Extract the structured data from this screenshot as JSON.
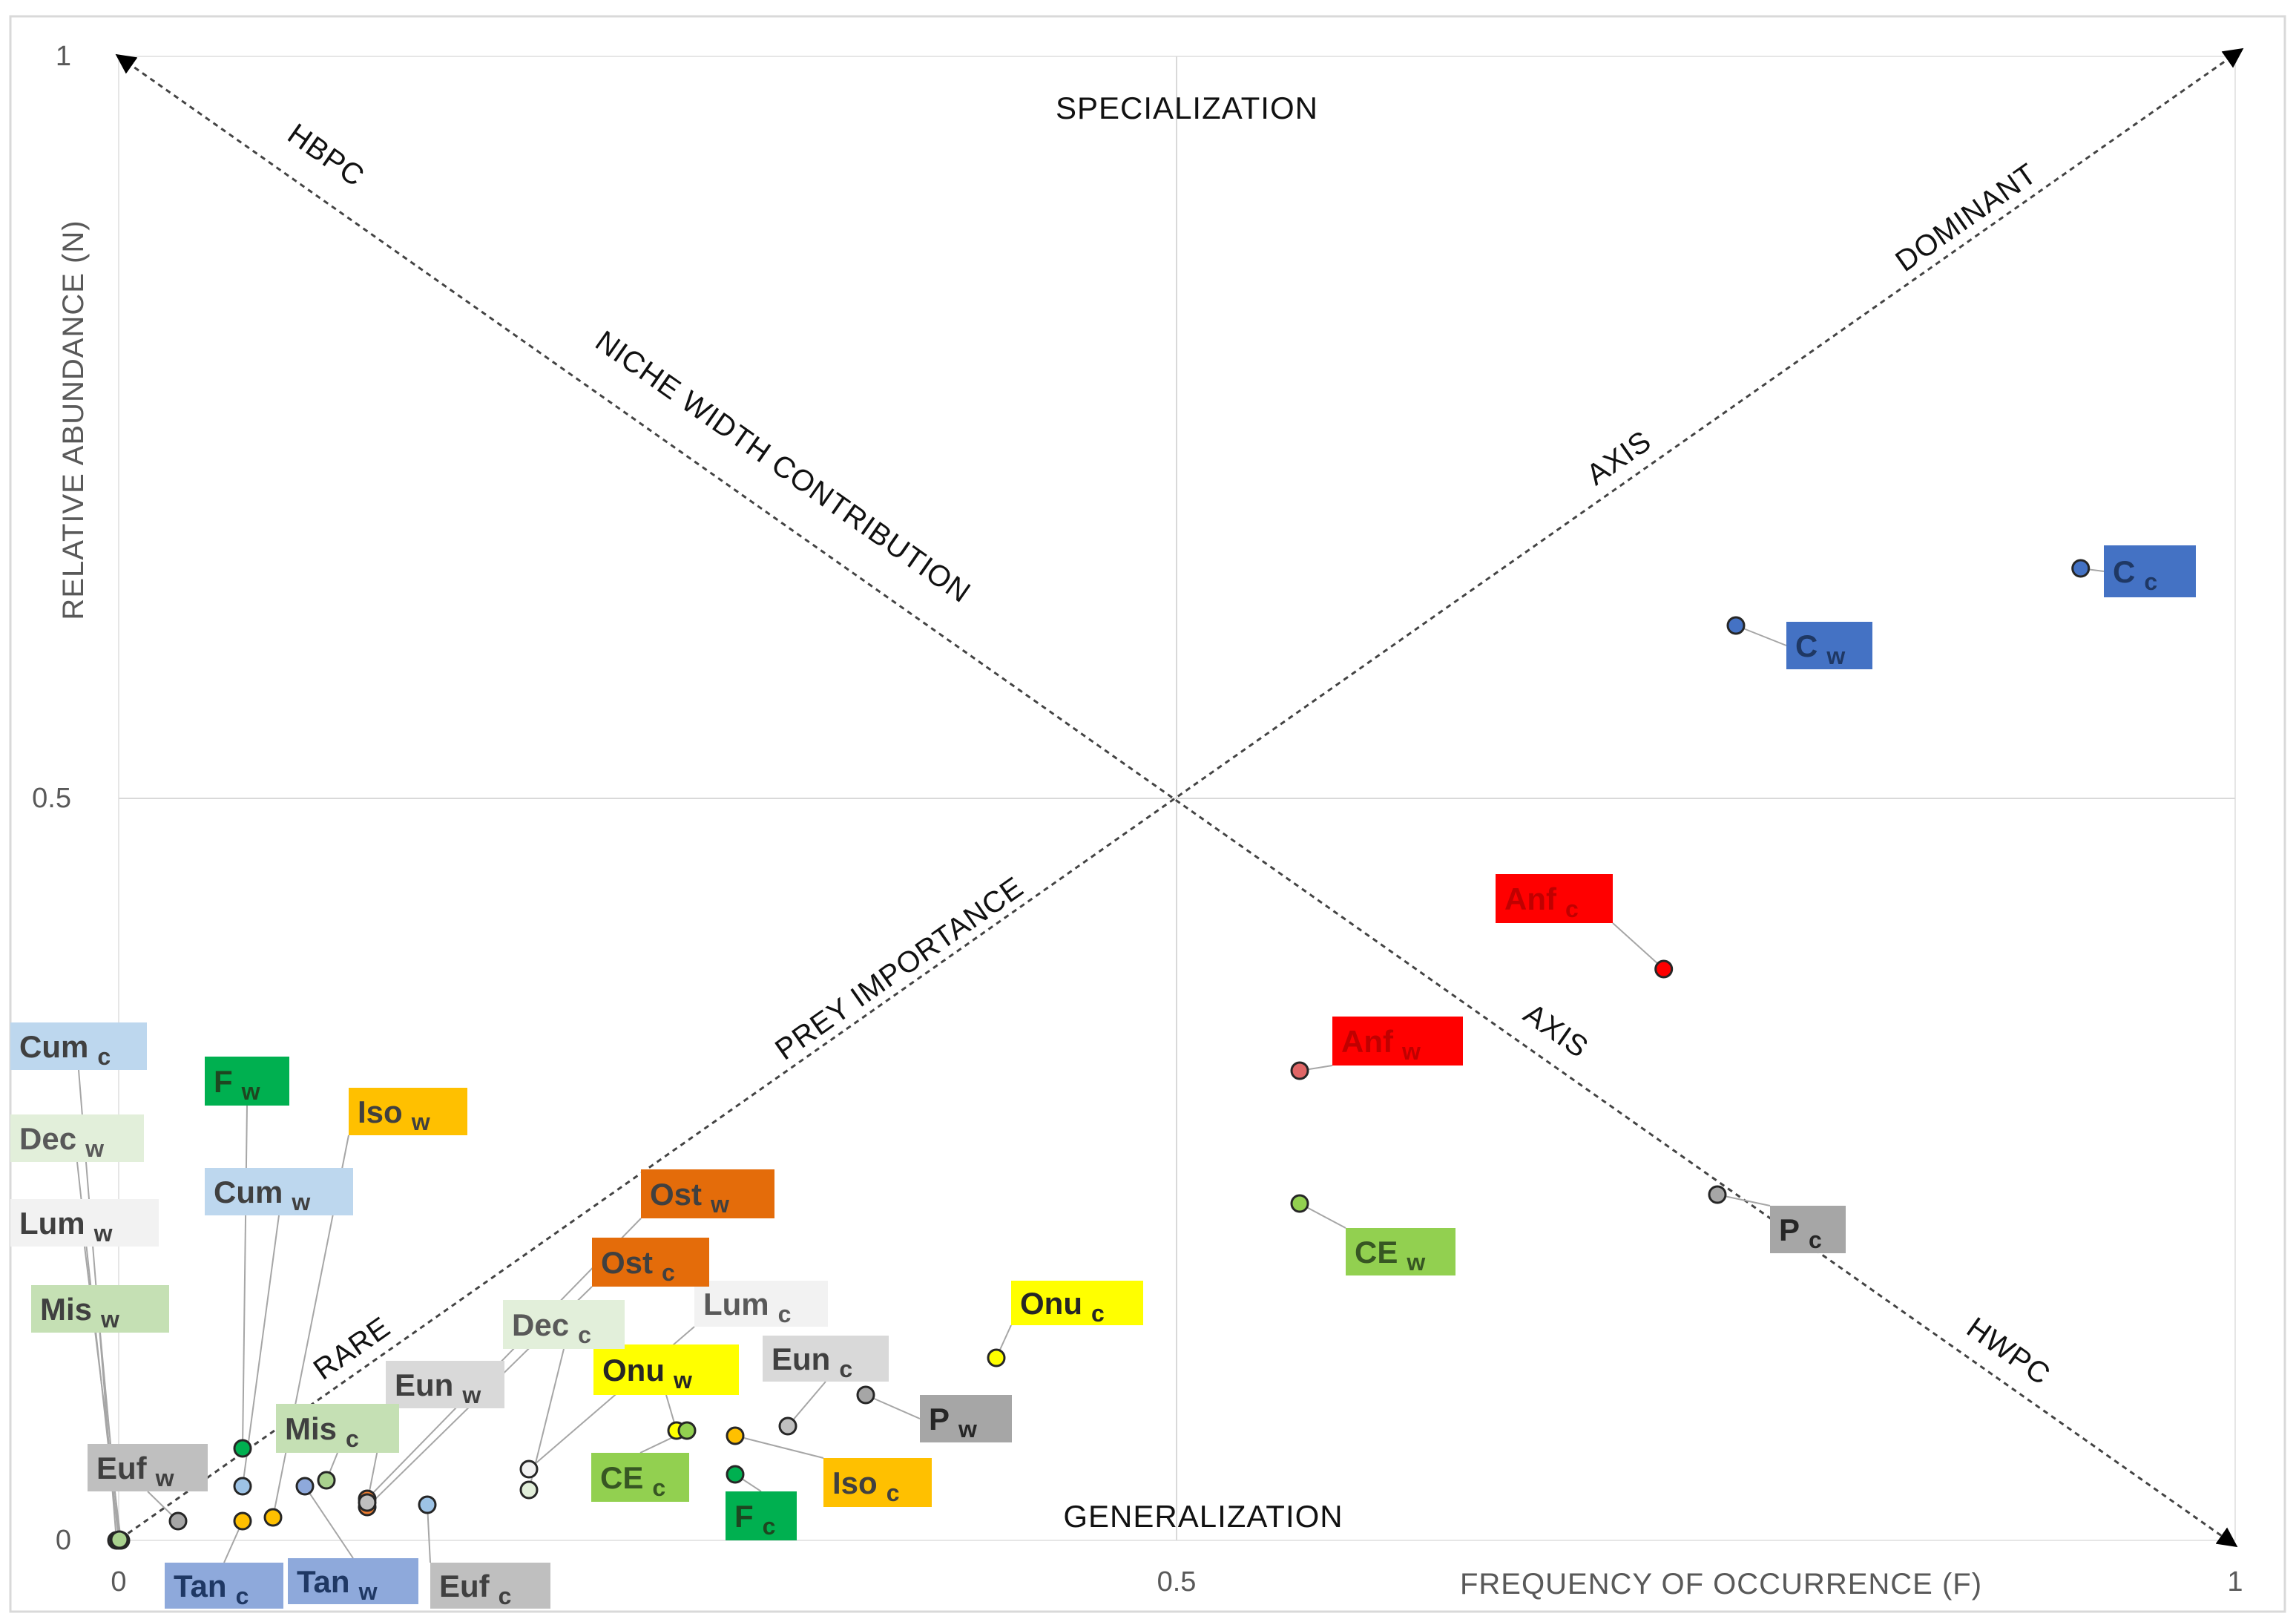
{
  "chart_data": {
    "type": "scatter",
    "xlabel": "FREQUENCY OF OCCURRENCE (F)",
    "ylabel": "RELATIVE ABUNDANCE (N)",
    "xlim": [
      0,
      1
    ],
    "ylim": [
      0,
      1
    ],
    "x_ticks": [
      "0",
      "0.5",
      "1"
    ],
    "y_ticks": [
      "0",
      "0.5",
      "1"
    ],
    "grid": "midlines",
    "annotations": {
      "top": "SPECIALIZATION",
      "bottom": "GENERALIZATION",
      "hbpc": "HBPC",
      "niche_width": "NICHE WIDTH CONTRIBUTION",
      "dominant": "DOMINANT",
      "axis_upper": "AXIS",
      "prey_importance": "PREY IMPORTANCE",
      "axis_lower": "AXIS",
      "rare": "RARE",
      "hwpc": "HWPC"
    },
    "points": [
      {
        "name": "C",
        "sub": "c",
        "x": 0.927,
        "y": 0.655,
        "color": "#4472C4",
        "label_bg": "#4472C4",
        "label_fg": "#1F3864"
      },
      {
        "name": "C",
        "sub": "w",
        "x": 0.766,
        "y": 0.62,
        "color": "#4472C4",
        "label_bg": "#4472C4",
        "label_fg": "#1F3864"
      },
      {
        "name": "Anf",
        "sub": "c",
        "x": 0.73,
        "y": 0.385,
        "color": "#FF0000",
        "label_bg": "#FF0000",
        "label_fg": "#C00000"
      },
      {
        "name": "Anf",
        "sub": "w",
        "x": 0.56,
        "y": 0.317,
        "color": "#E06666",
        "label_bg": "#FF0000",
        "label_fg": "#C00000"
      },
      {
        "name": "CE",
        "sub": "w",
        "x": 0.56,
        "y": 0.227,
        "color": "#92D050",
        "label_bg": "#92D050",
        "label_fg": "#375623"
      },
      {
        "name": "P",
        "sub": "c",
        "x": 0.757,
        "y": 0.232,
        "color": "#A6A6A6",
        "label_bg": "#A6A6A6",
        "label_fg": "#262626"
      },
      {
        "name": "Onu",
        "sub": "c",
        "x": 0.415,
        "y": 0.12,
        "color": "#FFFF00",
        "label_bg": "#FFFF00",
        "label_fg": "#262626"
      },
      {
        "name": "P",
        "sub": "w",
        "x": 0.353,
        "y": 0.097,
        "color": "#A6A6A6",
        "label_bg": "#A6A6A6",
        "label_fg": "#262626"
      },
      {
        "name": "Eun",
        "sub": "c",
        "x": 0.317,
        "y": 0.077,
        "color": "#BFBFBF",
        "label_bg": "#D9D9D9",
        "label_fg": "#404040"
      },
      {
        "name": "Iso",
        "sub": "c",
        "x": 0.292,
        "y": 0.07,
        "color": "#FFC000",
        "label_bg": "#FFC000",
        "label_fg": "#404040"
      },
      {
        "name": "F",
        "sub": "c",
        "x": 0.292,
        "y": 0.044,
        "color": "#00B050",
        "label_bg": "#00B050",
        "label_fg": "#1E4620"
      },
      {
        "name": "Onu",
        "sub": "w",
        "x": 0.265,
        "y": 0.074,
        "color": "#FFFF00",
        "label_bg": "#FFFF00",
        "label_fg": "#262626"
      },
      {
        "name": "CE",
        "sub": "c",
        "x": 0.27,
        "y": 0.074,
        "color": "#92D050",
        "label_bg": "#92D050",
        "label_fg": "#375623"
      },
      {
        "name": "Lum",
        "sub": "c",
        "x": 0.195,
        "y": 0.047,
        "color": "#F2F2F2",
        "label_bg": "#F2F2F2",
        "label_fg": "#595959"
      },
      {
        "name": "Dec",
        "sub": "c",
        "x": 0.195,
        "y": 0.033,
        "color": "#E2EFDA",
        "label_bg": "#E2EFDA",
        "label_fg": "#595959"
      },
      {
        "name": "Ost",
        "sub": "w",
        "x": 0.118,
        "y": 0.025,
        "color": "#ED7D31",
        "label_bg": "#E46C0A",
        "label_fg": "#404040"
      },
      {
        "name": "Ost",
        "sub": "c",
        "x": 0.118,
        "y": 0.025,
        "color": "#ED7D31",
        "label_bg": "#E46C0A",
        "label_fg": "#404040"
      },
      {
        "name": "Euf",
        "sub": "c",
        "x": 0.146,
        "y": 0.023,
        "color": "#9DC3E6",
        "label_bg": "#BFBFBF",
        "label_fg": "#404040"
      },
      {
        "name": "Eun",
        "sub": "w",
        "x": 0.118,
        "y": 0.025,
        "color": "#BFBFBF",
        "label_bg": "#D9D9D9",
        "label_fg": "#404040"
      },
      {
        "name": "Mis",
        "sub": "c",
        "x": 0.098,
        "y": 0.04,
        "color": "#A9D18E",
        "label_bg": "#C5E0B4",
        "label_fg": "#404040"
      },
      {
        "name": "Tan",
        "sub": "c",
        "x": 0.058,
        "y": 0.012,
        "color": "#FFC000",
        "label_bg": "#8EA9DB",
        "label_fg": "#1F3864"
      },
      {
        "name": "Tan",
        "sub": "w",
        "x": 0.088,
        "y": 0.035,
        "color": "#8EA9DB",
        "label_bg": "#8EA9DB",
        "label_fg": "#1F3864"
      },
      {
        "name": "Euf",
        "sub": "w",
        "x": 0.058,
        "y": 0.013,
        "color": "#A6A6A6",
        "label_bg": "#BFBFBF",
        "label_fg": "#404040"
      },
      {
        "name": "F",
        "sub": "w",
        "x": 0.058,
        "y": 0.062,
        "color": "#00B050",
        "label_bg": "#00B050",
        "label_fg": "#1E4620"
      },
      {
        "name": "Cum",
        "sub": "w",
        "x": 0.058,
        "y": 0.035,
        "color": "#9DC3E6",
        "label_bg": "#BDD7EE",
        "label_fg": "#404040"
      },
      {
        "name": "Iso",
        "sub": "w",
        "x": 0.058,
        "y": 0.035,
        "color": "#FFC000",
        "label_bg": "#FFC000",
        "label_fg": "#404040"
      },
      {
        "name": "Cum",
        "sub": "c",
        "x": 0.0,
        "y": 0.0,
        "color": "#9DC3E6",
        "label_bg": "#BDD7EE",
        "label_fg": "#404040"
      },
      {
        "name": "Dec",
        "sub": "w",
        "x": 0.0,
        "y": 0.0,
        "color": "#E2EFDA",
        "label_bg": "#E2EFDA",
        "label_fg": "#595959"
      },
      {
        "name": "Lum",
        "sub": "w",
        "x": 0.0,
        "y": 0.0,
        "color": "#F2F2F2",
        "label_bg": "#F2F2F2",
        "label_fg": "#404040"
      },
      {
        "name": "Mis",
        "sub": "w",
        "x": 0.0,
        "y": 0.0,
        "color": "#A9D18E",
        "label_bg": "#C5E0B4",
        "label_fg": "#404040"
      }
    ]
  }
}
